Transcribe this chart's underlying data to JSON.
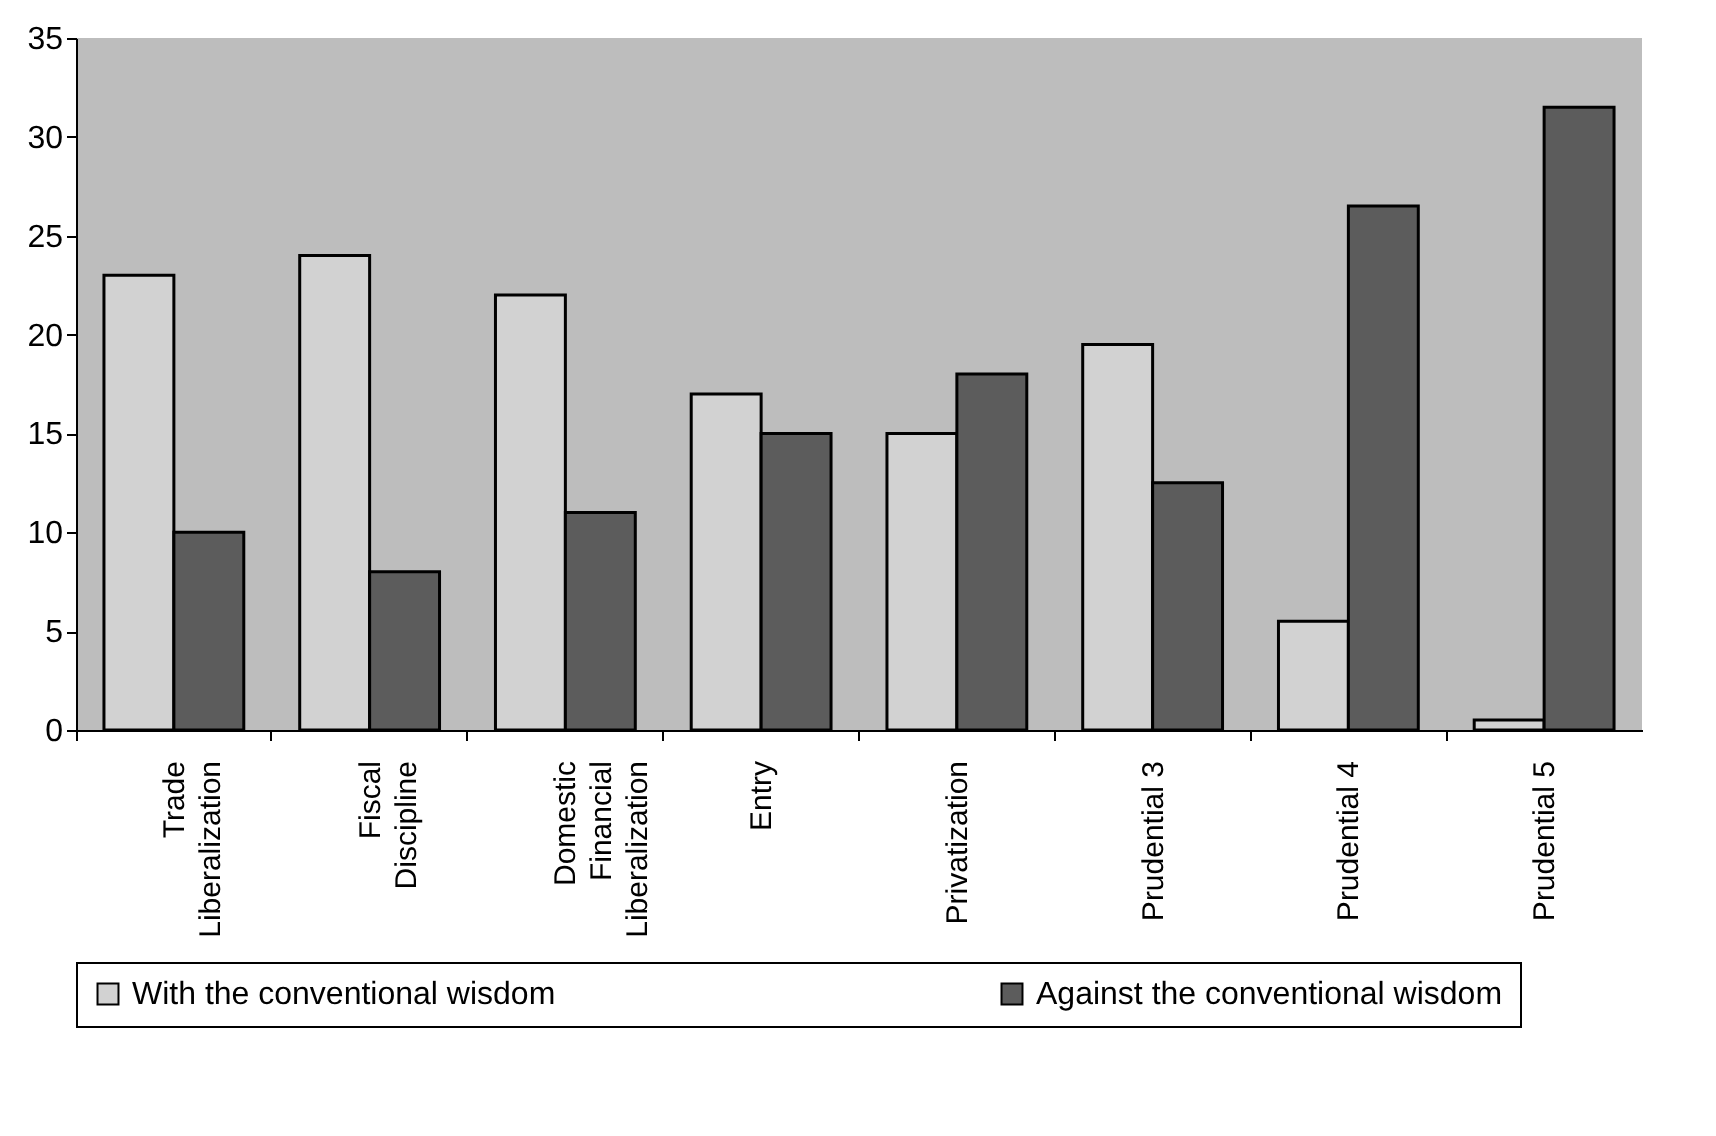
{
  "chart_data": {
    "type": "bar",
    "categories": [
      "Trade Liberalization",
      "Fiscal Discipline",
      "Domestic Financial Liberalization",
      "Entry",
      "Privatization",
      "Prudential 3",
      "Prudential 4",
      "Prudential 5"
    ],
    "series": [
      {
        "name": "With the conventional wisdom",
        "color": "#d2d2d2",
        "values": [
          23,
          24,
          22,
          17,
          15,
          19.5,
          5.5,
          0.5
        ]
      },
      {
        "name": "Against the conventional wisdom",
        "color": "#5c5c5c",
        "values": [
          10,
          8,
          11,
          15,
          18,
          12.5,
          26.5,
          31.5
        ]
      }
    ],
    "ylim": [
      0,
      35
    ],
    "yticks": [
      0,
      5,
      10,
      15,
      20,
      25,
      30,
      35
    ],
    "grid": false,
    "legend": "bottom"
  }
}
